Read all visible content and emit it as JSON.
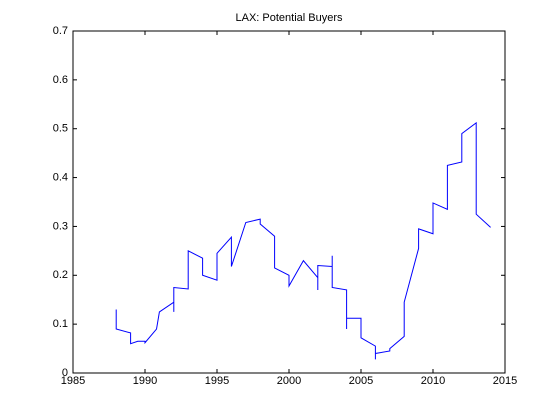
{
  "chart_data": {
    "type": "line",
    "title": "LAX: Potential Buyers",
    "x": [
      1988.0,
      1988.0,
      1989.0,
      1989.0,
      1989.5,
      1990.0,
      1990.0,
      1990.8,
      1991.0,
      1992.0,
      1992.0,
      1992.0,
      1993.0,
      1993.0,
      1994.0,
      1994.0,
      1995.0,
      1995.0,
      1996.0,
      1996.0,
      1997.0,
      1998.0,
      1998.0,
      1999.0,
      1999.0,
      2000.0,
      2000.0,
      2001.0,
      2002.0,
      2002.0,
      2002.0,
      2003.0,
      2003.0,
      2003.0,
      2004.0,
      2004.0,
      2004.0,
      2005.0,
      2005.0,
      2006.0,
      2006.0,
      2006.0,
      2007.0,
      2007.0,
      2008.0,
      2008.0,
      2009.0,
      2009.0,
      2010.0,
      2010.0,
      2011.0,
      2011.0,
      2012.0,
      2012.0,
      2013.0,
      2013.0,
      2014.0
    ],
    "values": [
      0.13,
      0.09,
      0.082,
      0.06,
      0.065,
      0.065,
      0.062,
      0.09,
      0.125,
      0.145,
      0.125,
      0.175,
      0.172,
      0.25,
      0.235,
      0.2,
      0.19,
      0.245,
      0.278,
      0.218,
      0.308,
      0.315,
      0.305,
      0.28,
      0.215,
      0.2,
      0.178,
      0.23,
      0.195,
      0.17,
      0.22,
      0.218,
      0.24,
      0.175,
      0.17,
      0.09,
      0.112,
      0.112,
      0.072,
      0.055,
      0.028,
      0.04,
      0.045,
      0.05,
      0.075,
      0.145,
      0.255,
      0.295,
      0.285,
      0.348,
      0.335,
      0.425,
      0.432,
      0.49,
      0.512,
      0.325,
      0.298
    ],
    "color": "#0000ff",
    "xlim": [
      1985,
      2015
    ],
    "xticks": [
      1985,
      1990,
      1995,
      2000,
      2005,
      2010,
      2015
    ],
    "ylim": [
      0,
      0.7
    ],
    "yticks": [
      0,
      0.1,
      0.2,
      0.3,
      0.4,
      0.5,
      0.6,
      0.7
    ]
  }
}
